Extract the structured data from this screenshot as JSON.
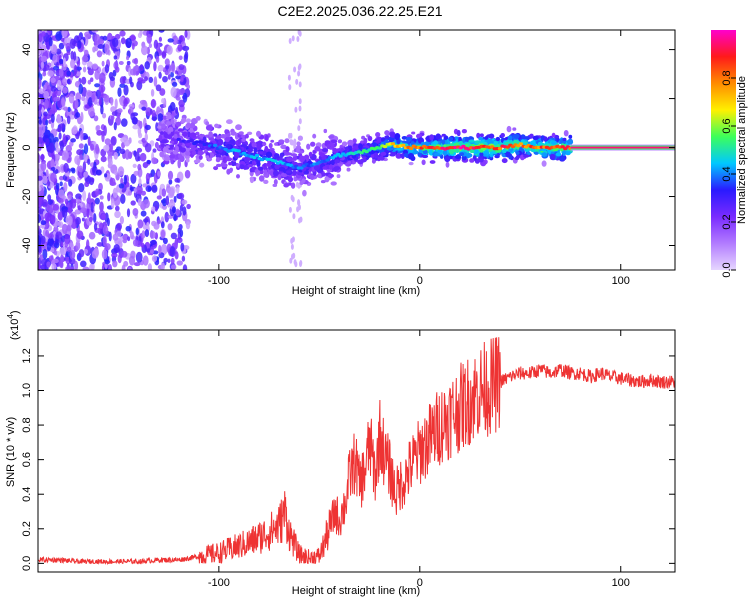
{
  "title": "C2E2.2025.036.22.25.E21",
  "chart_data": [
    {
      "type": "heatmap",
      "xlabel": "Height of straight line (km)",
      "ylabel": "Frequency (Hz)",
      "xlim": [
        -190,
        127
      ],
      "ylim": [
        -50,
        48
      ],
      "xticks": [
        -100,
        0,
        100
      ],
      "yticks": [
        -40,
        -20,
        0,
        20,
        40
      ],
      "colorbar": {
        "label": "Normalized spectral amplitude",
        "range": [
          0,
          1
        ],
        "ticks": [
          "0.0",
          "0.2",
          "0.4",
          "0.6",
          "0.8"
        ],
        "tick_values": [
          0,
          0.2,
          0.4,
          0.6,
          0.8
        ]
      },
      "ridge": {
        "x": [
          -120,
          -110,
          -100,
          -90,
          -80,
          -70,
          -60,
          -55,
          -50,
          -40,
          -30,
          -20,
          -15,
          -10,
          -5,
          0,
          10,
          20,
          30,
          40,
          50,
          60,
          70,
          127
        ],
        "frequency": [
          3,
          2,
          0,
          -2,
          -4,
          -6,
          -8,
          -7,
          -6,
          -3,
          -2,
          0,
          1,
          1,
          0,
          0,
          0,
          0,
          0,
          0,
          1,
          0,
          0,
          0
        ],
        "amplitude": [
          0.3,
          0.35,
          0.4,
          0.45,
          0.45,
          0.45,
          0.4,
          0.4,
          0.4,
          0.45,
          0.5,
          0.6,
          0.7,
          0.75,
          0.8,
          0.85,
          0.9,
          0.95,
          0.95,
          0.9,
          0.85,
          0.85,
          0.9,
          0.95
        ]
      },
      "colors": [
        "#e6d6ff",
        "#b27cff",
        "#7a2cff",
        "#2a1aff",
        "#00c8ff",
        "#3cff5a",
        "#fff000",
        "#ff8c00",
        "#ff1a1a",
        "#ff00cc"
      ]
    },
    {
      "type": "line",
      "xlabel": "Height of straight line (km)",
      "ylabel": "SNR (10 * v/v)",
      "y_multiplier": "(x10",
      "y_multiplier_exp": "4",
      "y_multiplier_close": ")",
      "xlim": [
        -190,
        127
      ],
      "ylim": [
        -0.05,
        1.35
      ],
      "xticks": [
        -100,
        0,
        100
      ],
      "yticks": [
        0.0,
        0.2,
        0.4,
        0.6,
        0.8,
        1.0,
        1.2
      ],
      "ytick_labels": [
        "0.0",
        "0.2",
        "0.4",
        "0.6",
        "0.8",
        "1.0",
        "1.2"
      ],
      "series": [
        {
          "color": "#ee3333",
          "x": [
            -190,
            -180,
            -170,
            -160,
            -150,
            -140,
            -130,
            -120,
            -110,
            -100,
            -95,
            -90,
            -85,
            -80,
            -75,
            -70,
            -67,
            -65,
            -62,
            -60,
            -55,
            -50,
            -48,
            -45,
            -42,
            -40,
            -37,
            -35,
            -32,
            -30,
            -27,
            -25,
            -22,
            -20,
            -17,
            -15,
            -12,
            -10,
            -7,
            -5,
            0,
            5,
            10,
            15,
            20,
            25,
            30,
            35,
            40,
            45,
            50,
            55,
            60,
            65,
            70,
            75,
            80,
            85,
            90,
            95,
            100,
            105,
            110,
            115,
            120,
            127
          ],
          "values": [
            0.02,
            0.02,
            0.01,
            0.01,
            0.01,
            0.01,
            0.02,
            0.02,
            0.04,
            0.06,
            0.08,
            0.1,
            0.12,
            0.15,
            0.18,
            0.22,
            0.3,
            0.18,
            0.1,
            0.05,
            0.03,
            0.04,
            0.1,
            0.2,
            0.3,
            0.25,
            0.35,
            0.5,
            0.6,
            0.45,
            0.55,
            0.7,
            0.5,
            0.75,
            0.6,
            0.55,
            0.4,
            0.45,
            0.5,
            0.55,
            0.65,
            0.72,
            0.8,
            0.85,
            0.9,
            0.95,
            1.0,
            1.02,
            1.05,
            1.08,
            1.1,
            1.1,
            1.12,
            1.1,
            1.12,
            1.1,
            1.1,
            1.08,
            1.1,
            1.08,
            1.07,
            1.06,
            1.05,
            1.06,
            1.05,
            1.05
          ]
        }
      ]
    }
  ]
}
